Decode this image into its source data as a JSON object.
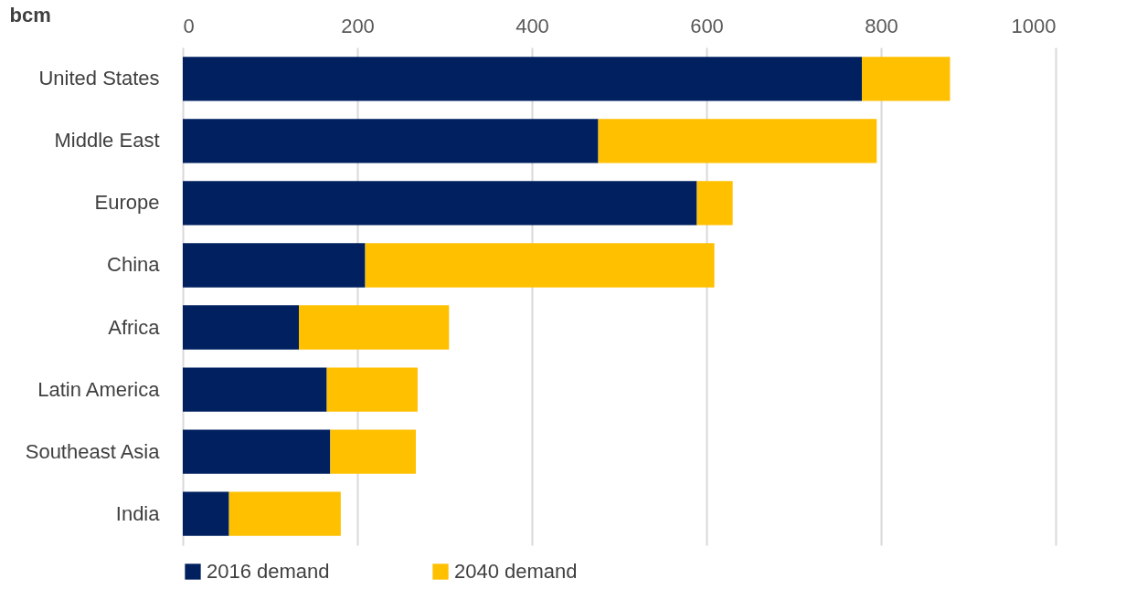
{
  "chart_data": {
    "type": "bar",
    "orientation": "horizontal",
    "stacked": true,
    "xlabel": "bcm",
    "categories": [
      "United States",
      "Middle East",
      "Europe",
      "China",
      "Africa",
      "Latin America",
      "Southeast Asia",
      "India"
    ],
    "series": [
      {
        "name": "2016 demand",
        "color": "#002060",
        "values": [
          778,
          476,
          589,
          209,
          133,
          165,
          169,
          53
        ]
      },
      {
        "name": "2040 demand",
        "color": "#ffc000",
        "values": [
          101,
          319,
          41,
          400,
          172,
          104,
          98,
          128
        ]
      }
    ],
    "xlim": [
      0,
      1000
    ],
    "xticks": [
      0,
      200,
      400,
      600,
      800,
      1000
    ],
    "grid": "x",
    "legend": "bottom"
  }
}
